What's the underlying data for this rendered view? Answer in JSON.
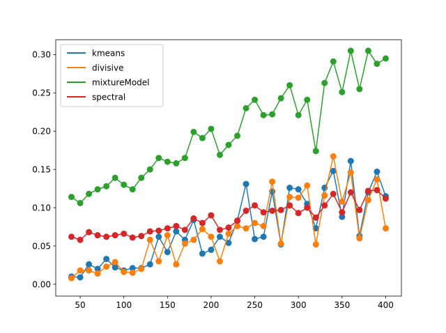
{
  "chart_data": {
    "type": "line",
    "title": "",
    "xlabel": "",
    "ylabel": "",
    "xlim": [
      22,
      418
    ],
    "ylim": [
      -0.0155,
      0.3195
    ],
    "xticks": [
      50,
      100,
      150,
      200,
      250,
      300,
      350,
      400
    ],
    "yticks": [
      0.0,
      0.05,
      0.1,
      0.15,
      0.2,
      0.25,
      0.3
    ],
    "ytick_labels": [
      "0.00",
      "0.05",
      "0.10",
      "0.15",
      "0.20",
      "0.25",
      "0.30"
    ],
    "grid": false,
    "legend_position": "upper-left",
    "x": [
      40,
      50,
      60,
      70,
      80,
      90,
      100,
      110,
      120,
      130,
      140,
      150,
      160,
      170,
      180,
      190,
      200,
      210,
      220,
      230,
      240,
      250,
      260,
      270,
      280,
      290,
      300,
      310,
      320,
      330,
      340,
      350,
      360,
      370,
      380,
      390,
      400
    ],
    "series": [
      {
        "name": "kmeans",
        "color": "#1f77b4",
        "values": [
          0.01,
          0.009,
          0.026,
          0.02,
          0.033,
          0.022,
          0.018,
          0.021,
          0.021,
          0.026,
          0.062,
          0.042,
          0.069,
          0.058,
          0.084,
          0.04,
          0.045,
          0.062,
          0.054,
          0.083,
          0.131,
          0.059,
          0.062,
          0.121,
          0.052,
          0.126,
          0.124,
          0.105,
          0.073,
          0.126,
          0.148,
          0.088,
          0.161,
          0.063,
          0.12,
          0.147,
          0.115
        ]
      },
      {
        "name": "divisive",
        "color": "#ff7f0e",
        "values": [
          0.008,
          0.018,
          0.018,
          0.014,
          0.023,
          0.029,
          0.016,
          0.015,
          0.02,
          0.058,
          0.03,
          0.064,
          0.026,
          0.053,
          0.058,
          0.072,
          0.062,
          0.03,
          0.066,
          0.076,
          0.073,
          0.08,
          0.076,
          0.134,
          0.053,
          0.114,
          0.113,
          0.129,
          0.052,
          0.116,
          0.167,
          0.108,
          0.146,
          0.06,
          0.11,
          0.137,
          0.073
        ]
      },
      {
        "name": "mixtureModel",
        "color": "#2ca02c",
        "values": [
          0.114,
          0.106,
          0.118,
          0.124,
          0.128,
          0.139,
          0.13,
          0.124,
          0.139,
          0.15,
          0.165,
          0.16,
          0.158,
          0.165,
          0.199,
          0.191,
          0.203,
          0.169,
          0.182,
          0.194,
          0.23,
          0.241,
          0.221,
          0.222,
          0.243,
          0.26,
          0.221,
          0.241,
          0.174,
          0.263,
          0.291,
          0.251,
          0.305,
          0.255,
          0.305,
          0.288,
          0.295
        ]
      },
      {
        "name": "spectral",
        "color": "#d62728",
        "values": [
          0.062,
          0.058,
          0.068,
          0.064,
          0.062,
          0.064,
          0.066,
          0.061,
          0.063,
          0.069,
          0.07,
          0.073,
          0.076,
          0.071,
          0.086,
          0.08,
          0.09,
          0.071,
          0.074,
          0.083,
          0.096,
          0.103,
          0.094,
          0.096,
          0.097,
          0.103,
          0.093,
          0.1,
          0.087,
          0.103,
          0.118,
          0.094,
          0.12,
          0.097,
          0.122,
          0.123,
          0.112
        ]
      }
    ]
  }
}
